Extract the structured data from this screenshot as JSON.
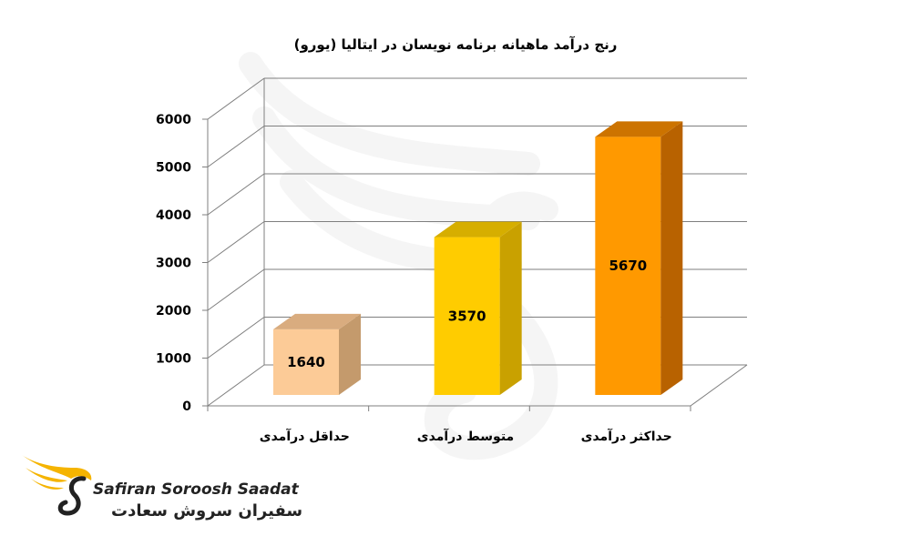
{
  "chart_data": {
    "type": "bar",
    "title": "رنج درآمد ماهیانه برنامه نویسان در ایتالیا (یورو)",
    "categories": [
      "حداقل درآمدی",
      "متوسط درآمدی",
      "حداکثر درآمدی"
    ],
    "values": [
      1640,
      3570,
      5670
    ],
    "data_labels": [
      "1640",
      "3570",
      "5670"
    ],
    "y_ticks": [
      "0",
      "1000",
      "2000",
      "3000",
      "4000",
      "5000",
      "6000"
    ],
    "ylim": [
      0,
      6000
    ],
    "grid": true,
    "bar_style": "3d",
    "colors": {
      "bars": [
        {
          "front": "#FCCB97",
          "side": "#C49A6C",
          "top": "#D9AC7F"
        },
        {
          "front": "#FFCC00",
          "side": "#C9A100",
          "top": "#D6AE00"
        },
        {
          "front": "#FF9900",
          "side": "#B86200",
          "top": "#CC7300"
        }
      ],
      "grid": "#7f7f7f",
      "text": "#000000"
    }
  },
  "brand": {
    "name_en": "Safiran Soroosh Saadat",
    "name_fa": "سفیران سروش سعادت",
    "icon": "eagle-head-icon",
    "accent": "#F5B400"
  }
}
